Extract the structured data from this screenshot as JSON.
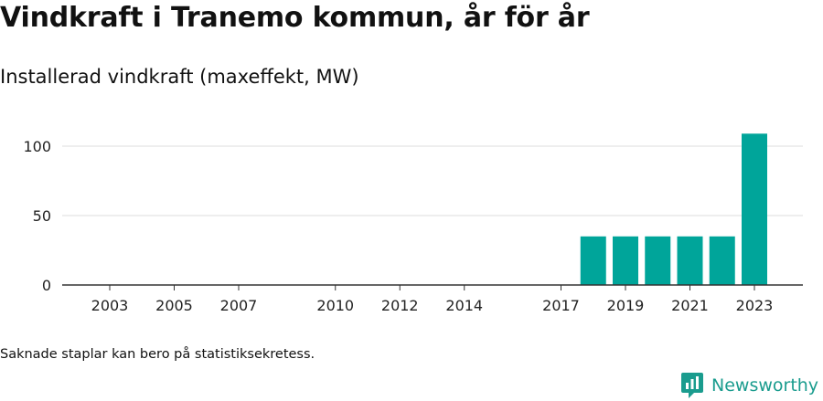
{
  "header": {
    "title": "Vindkraft i Tranemo kommun, år för år",
    "subtitle": "Installerad vindkraft (maxeffekt, MW)"
  },
  "chart_data": {
    "type": "bar",
    "title": "Vindkraft i Tranemo kommun, år för år",
    "subtitle": "Installerad vindkraft (maxeffekt, MW)",
    "xlabel": "",
    "ylabel": "",
    "categories": [
      "2003",
      "2004",
      "2005",
      "2006",
      "2007",
      "2008",
      "2009",
      "2010",
      "2011",
      "2012",
      "2013",
      "2014",
      "2015",
      "2016",
      "2017",
      "2018",
      "2019",
      "2020",
      "2021",
      "2022",
      "2023"
    ],
    "x_tick_labels": [
      "2003",
      "2005",
      "2007",
      "2010",
      "2012",
      "2014",
      "2017",
      "2019",
      "2021",
      "2023"
    ],
    "values": [
      0,
      0,
      0,
      0,
      0,
      0,
      0,
      0,
      0,
      0,
      0,
      0,
      0,
      0,
      0,
      35,
      35,
      35,
      35,
      35,
      109
    ],
    "y_ticks": [
      0,
      50,
      100
    ],
    "ylim": [
      0,
      115
    ],
    "bar_color": "#00a59a",
    "grid": true
  },
  "footer": {
    "note": "Saknade staplar kan bero på statistiksekretess.",
    "brand": "Newsworthy",
    "brand_icon": "newsworthy-logo-icon",
    "brand_color": "#1a9c8e"
  }
}
